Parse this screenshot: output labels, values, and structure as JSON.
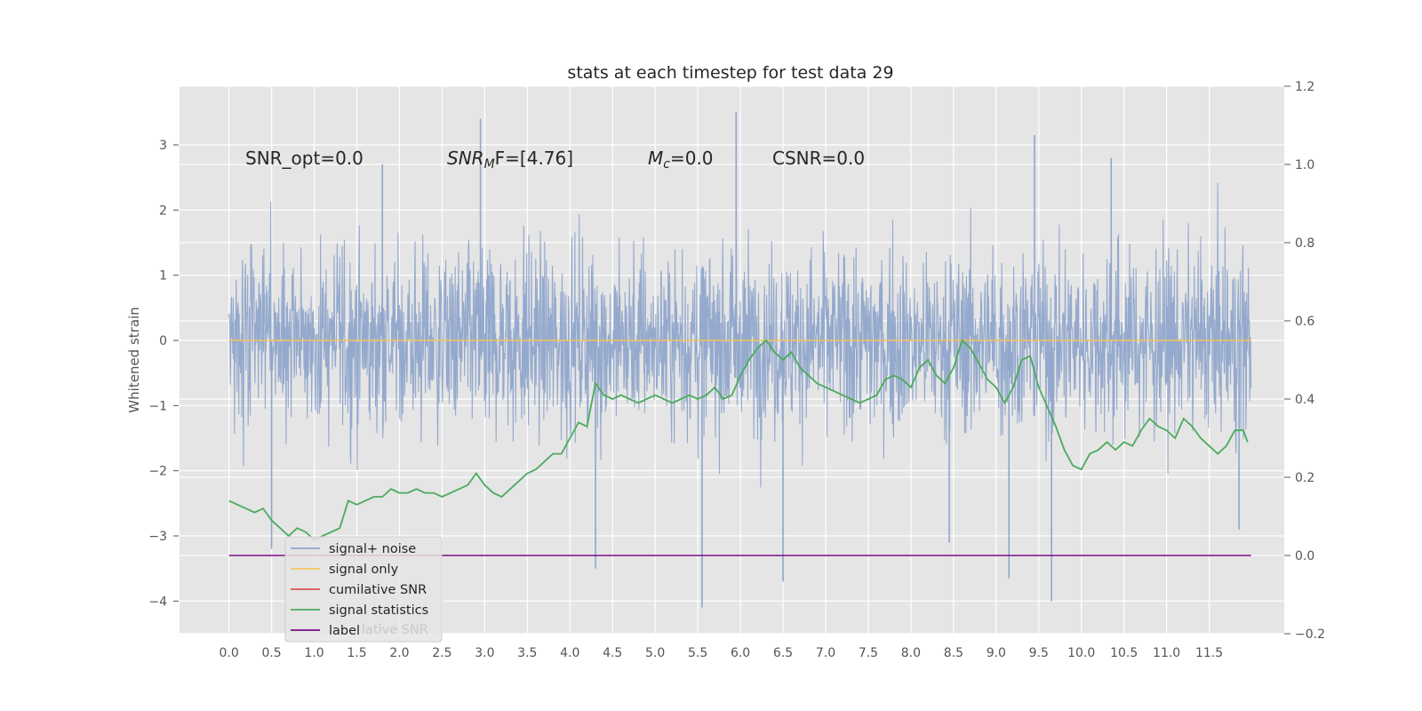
{
  "chart_data": {
    "type": "line",
    "title": "stats at each timestep for test data 29",
    "ylabel": "Whitened strain",
    "y2label": "",
    "xlim": [
      -0.58,
      12.38
    ],
    "ylim": [
      -4.5,
      3.9
    ],
    "y2lim": [
      -0.2,
      1.2
    ],
    "grid": true,
    "x_ticks": [
      "0.0",
      "0.5",
      "1.0",
      "1.5",
      "2.0",
      "2.5",
      "3.0",
      "3.5",
      "4.0",
      "4.5",
      "5.0",
      "5.5",
      "6.0",
      "6.5",
      "7.0",
      "7.5",
      "8.0",
      "8.5",
      "9.0",
      "9.5",
      "10.0",
      "10.5",
      "11.0",
      "11.5"
    ],
    "y_ticks": [
      "3",
      "2",
      "1",
      "0",
      "−1",
      "−2",
      "−3",
      "−4"
    ],
    "y2_ticks": [
      "1.2",
      "1.0",
      "0.8",
      "0.6",
      "0.4",
      "0.2",
      "0.0",
      "−0.2"
    ],
    "annotations": {
      "snr_opt": "SNR_opt=0.0",
      "snr_mf_base": "SNR",
      "snr_mf_sub": "M",
      "snr_mf_rest": "F=[4.76]",
      "mc_base": "M",
      "mc_sub": "c",
      "mc_rest": "=0.0",
      "csnr": "CSNR=0.0"
    },
    "legend": {
      "placement": "lower-left",
      "entries": [
        {
          "label": "signal+ noise",
          "color": "#8fa5cb"
        },
        {
          "label": "signal only",
          "color": "#f2c55c"
        },
        {
          "label": "cumilative SNR",
          "color": "#d9534f"
        },
        {
          "label": "signal statistics",
          "color": "#4caa5c"
        },
        {
          "label": "label",
          "color": "#7b0c83"
        }
      ],
      "ghost_text": "lative SNR"
    },
    "series": [
      {
        "name": "signal+ noise",
        "axis": "left",
        "color": "#8fa5cb",
        "style": "dense noise, roughly within [-2.2, 2.4] with spikes to 3.5 and -4.1",
        "x_start": 0.0,
        "x_end": 11.99,
        "spikes": [
          [
            0.5,
            -3.2
          ],
          [
            1.8,
            2.7
          ],
          [
            2.95,
            3.4
          ],
          [
            4.3,
            -3.5
          ],
          [
            5.55,
            -4.1
          ],
          [
            5.95,
            3.5
          ],
          [
            6.5,
            -3.7
          ],
          [
            8.45,
            -3.1
          ],
          [
            9.15,
            -3.65
          ],
          [
            9.45,
            3.15
          ],
          [
            9.65,
            -4.0
          ],
          [
            10.35,
            2.8
          ],
          [
            11.85,
            -2.9
          ]
        ]
      },
      {
        "name": "signal only",
        "axis": "left",
        "color": "#f2c55c",
        "x": [
          0.0,
          11.99
        ],
        "values": [
          0.0,
          0.0
        ]
      },
      {
        "name": "cumilative SNR",
        "axis": "right",
        "color": "#d9534f",
        "x": [],
        "values": []
      },
      {
        "name": "signal statistics",
        "axis": "right",
        "color": "#4caa5c",
        "x": [
          0.0,
          0.1,
          0.2,
          0.3,
          0.4,
          0.5,
          0.6,
          0.7,
          0.8,
          0.9,
          1.0,
          1.1,
          1.2,
          1.3,
          1.4,
          1.5,
          1.6,
          1.7,
          1.8,
          1.9,
          2.0,
          2.1,
          2.2,
          2.3,
          2.4,
          2.5,
          2.6,
          2.7,
          2.8,
          2.9,
          3.0,
          3.1,
          3.2,
          3.3,
          3.4,
          3.5,
          3.6,
          3.7,
          3.8,
          3.9,
          4.0,
          4.1,
          4.2,
          4.3,
          4.4,
          4.5,
          4.6,
          4.7,
          4.8,
          4.9,
          5.0,
          5.1,
          5.2,
          5.3,
          5.4,
          5.5,
          5.6,
          5.7,
          5.8,
          5.9,
          6.0,
          6.1,
          6.2,
          6.3,
          6.4,
          6.5,
          6.6,
          6.7,
          6.8,
          6.9,
          7.0,
          7.1,
          7.2,
          7.3,
          7.4,
          7.5,
          7.6,
          7.7,
          7.8,
          7.9,
          8.0,
          8.1,
          8.2,
          8.3,
          8.4,
          8.5,
          8.6,
          8.7,
          8.8,
          8.9,
          9.0,
          9.1,
          9.2,
          9.3,
          9.4,
          9.5,
          9.6,
          9.7,
          9.8,
          9.9,
          10.0,
          10.1,
          10.2,
          10.3,
          10.4,
          10.5,
          10.6,
          10.7,
          10.8,
          10.9,
          11.0,
          11.1,
          11.2,
          11.3,
          11.4,
          11.5,
          11.6,
          11.7,
          11.8,
          11.9,
          11.95
        ],
        "values": [
          0.14,
          0.13,
          0.12,
          0.11,
          0.12,
          0.09,
          0.07,
          0.05,
          0.07,
          0.06,
          0.04,
          0.05,
          0.06,
          0.07,
          0.14,
          0.13,
          0.14,
          0.15,
          0.15,
          0.17,
          0.16,
          0.16,
          0.17,
          0.16,
          0.16,
          0.15,
          0.16,
          0.17,
          0.18,
          0.21,
          0.18,
          0.16,
          0.15,
          0.17,
          0.19,
          0.21,
          0.22,
          0.24,
          0.26,
          0.26,
          0.3,
          0.34,
          0.33,
          0.44,
          0.41,
          0.4,
          0.41,
          0.4,
          0.39,
          0.4,
          0.41,
          0.4,
          0.39,
          0.4,
          0.41,
          0.4,
          0.41,
          0.43,
          0.4,
          0.41,
          0.46,
          0.5,
          0.53,
          0.55,
          0.52,
          0.5,
          0.52,
          0.48,
          0.46,
          0.44,
          0.43,
          0.42,
          0.41,
          0.4,
          0.39,
          0.4,
          0.41,
          0.45,
          0.46,
          0.45,
          0.43,
          0.48,
          0.5,
          0.46,
          0.44,
          0.48,
          0.55,
          0.53,
          0.49,
          0.45,
          0.43,
          0.39,
          0.43,
          0.5,
          0.51,
          0.43,
          0.38,
          0.33,
          0.27,
          0.23,
          0.22,
          0.26,
          0.27,
          0.29,
          0.27,
          0.29,
          0.28,
          0.32,
          0.35,
          0.33,
          0.32,
          0.3,
          0.35,
          0.33,
          0.3,
          0.28,
          0.26,
          0.28,
          0.32,
          0.32,
          0.29
        ]
      },
      {
        "name": "label",
        "axis": "right",
        "color": "#7b0c83",
        "x": [
          0.0,
          11.99
        ],
        "values": [
          0.0,
          0.0
        ]
      }
    ]
  }
}
